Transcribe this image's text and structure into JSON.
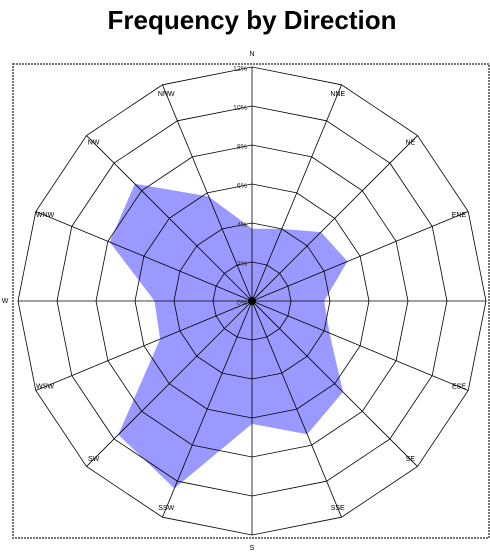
{
  "chart_data": {
    "type": "radar",
    "title": "Frequency by Direction",
    "categories": [
      "N",
      "NNE",
      "NE",
      "ENE",
      "E",
      "ESE",
      "SE",
      "SSE",
      "S",
      "SSW",
      "SW",
      "WSW",
      "W",
      "WNW",
      "NW",
      "NNW"
    ],
    "values": [
      3.7,
      4.0,
      5.0,
      5.3,
      3.7,
      4.3,
      6.6,
      7.4,
      6.3,
      10.4,
      9.7,
      5.1,
      5.0,
      7.9,
      8.5,
      5.8
    ],
    "color": "#9999ff",
    "rlim": [
      0,
      12
    ],
    "rticks": [
      {
        "value": 0,
        "label": "0%"
      },
      {
        "value": 2,
        "label": "2%"
      },
      {
        "value": 4,
        "label": "4%"
      },
      {
        "value": 6,
        "label": "6%"
      },
      {
        "value": 8,
        "label": "8%"
      },
      {
        "value": 10,
        "label": "10%"
      },
      {
        "value": 12,
        "label": "12%"
      }
    ]
  }
}
